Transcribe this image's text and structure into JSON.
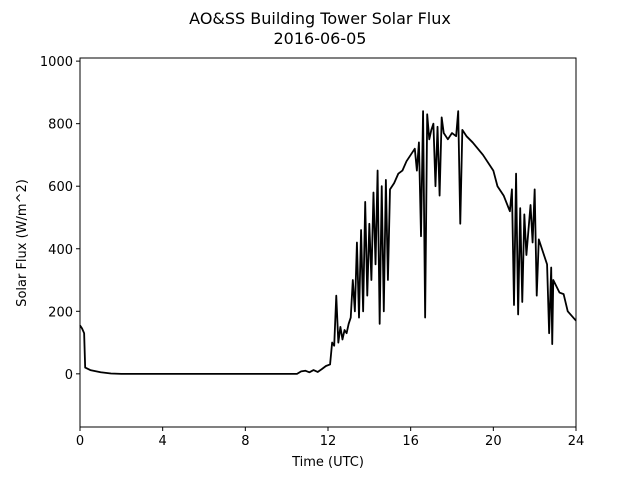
{
  "chart_data": {
    "type": "line",
    "title": "AO&SS Building Tower Solar Flux",
    "subtitle": "2016-06-05",
    "x_label": "Time (UTC)",
    "y_label": "Solar Flux (W/m^2)",
    "color": "#000000",
    "x": [
      0,
      0.1,
      0.2,
      0.25,
      0.5,
      1,
      1.5,
      2,
      4,
      6,
      8,
      10.5,
      10.7,
      10.9,
      11.1,
      11.3,
      11.5,
      11.7,
      11.9,
      12.1,
      12.2,
      12.3,
      12.4,
      12.5,
      12.6,
      12.7,
      12.8,
      12.9,
      13.0,
      13.1,
      13.2,
      13.3,
      13.4,
      13.5,
      13.6,
      13.7,
      13.8,
      13.9,
      14.0,
      14.1,
      14.2,
      14.3,
      14.4,
      14.5,
      14.6,
      14.7,
      14.8,
      14.9,
      15.0,
      15.2,
      15.4,
      15.6,
      15.8,
      16.0,
      16.2,
      16.3,
      16.4,
      16.5,
      16.6,
      16.7,
      16.8,
      16.9,
      17.0,
      17.1,
      17.2,
      17.3,
      17.4,
      17.5,
      17.6,
      17.8,
      18.0,
      18.2,
      18.3,
      18.4,
      18.5,
      18.7,
      19.0,
      19.5,
      20.0,
      20.2,
      20.5,
      20.8,
      20.9,
      21.0,
      21.1,
      21.2,
      21.3,
      21.4,
      21.5,
      21.6,
      21.8,
      21.9,
      22.0,
      22.1,
      22.2,
      22.4,
      22.6,
      22.7,
      22.8,
      22.85,
      22.9,
      23.2,
      23.4,
      23.6,
      24
    ],
    "values": [
      155,
      145,
      130,
      20,
      12,
      5,
      1,
      0,
      0,
      0,
      0,
      0,
      8,
      10,
      5,
      12,
      6,
      15,
      25,
      30,
      100,
      90,
      250,
      100,
      150,
      110,
      140,
      130,
      160,
      180,
      300,
      200,
      420,
      180,
      460,
      200,
      550,
      250,
      480,
      300,
      580,
      350,
      650,
      160,
      600,
      200,
      620,
      300,
      590,
      610,
      640,
      650,
      680,
      700,
      720,
      650,
      740,
      440,
      840,
      180,
      830,
      750,
      780,
      800,
      600,
      790,
      570,
      820,
      770,
      750,
      770,
      760,
      840,
      480,
      780,
      760,
      740,
      700,
      650,
      600,
      570,
      520,
      590,
      220,
      640,
      190,
      530,
      230,
      510,
      380,
      540,
      420,
      590,
      250,
      430,
      390,
      350,
      130,
      340,
      95,
      300,
      260,
      255,
      200,
      170
    ],
    "xlim": [
      0,
      24
    ],
    "xticks": [
      0,
      4,
      8,
      12,
      16,
      20,
      24
    ],
    "ylim": [
      -170,
      1010
    ],
    "yticks": [
      0,
      200,
      400,
      600,
      800,
      1000
    ]
  }
}
